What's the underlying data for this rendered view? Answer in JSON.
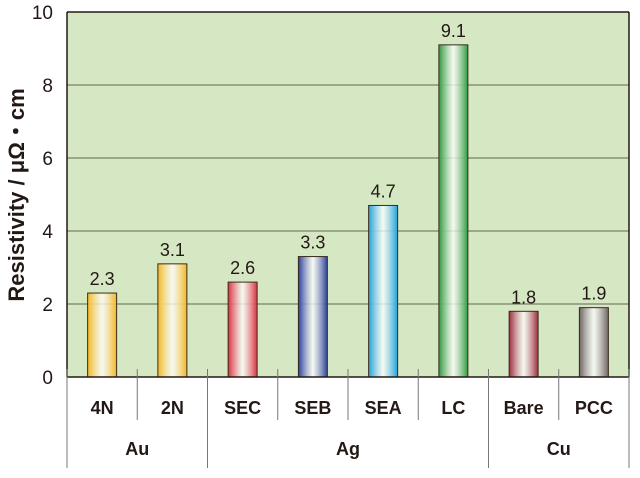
{
  "chart_data": {
    "type": "bar",
    "title": "",
    "xlabel": "",
    "ylabel": "Resistivity / μΩ・cm",
    "ylim": [
      0,
      10
    ],
    "yticks": [
      0,
      2,
      4,
      6,
      8,
      10
    ],
    "grid": true,
    "background": "#d5e8c3",
    "categories": [
      "4N",
      "2N",
      "SEC",
      "SEB",
      "SEA",
      "LC",
      "Bare",
      "PCC"
    ],
    "values": [
      2.3,
      3.1,
      2.6,
      3.3,
      4.7,
      9.1,
      1.8,
      1.9
    ],
    "data_labels": [
      "2.3",
      "3.1",
      "2.6",
      "3.3",
      "4.7",
      "9.1",
      "1.8",
      "1.9"
    ],
    "groups": [
      {
        "name": "Au",
        "members": [
          "4N",
          "2N"
        ]
      },
      {
        "name": "Ag",
        "members": [
          "SEC",
          "SEB",
          "SEA",
          "LC"
        ]
      },
      {
        "name": "Cu",
        "members": [
          "Bare",
          "PCC"
        ]
      }
    ],
    "bar_colors": [
      "#f2b823",
      "#f2b823",
      "#d8303e",
      "#2a3f9a",
      "#1fa2d8",
      "#2f9a3c",
      "#9c2c3c",
      "#6e6462"
    ]
  }
}
